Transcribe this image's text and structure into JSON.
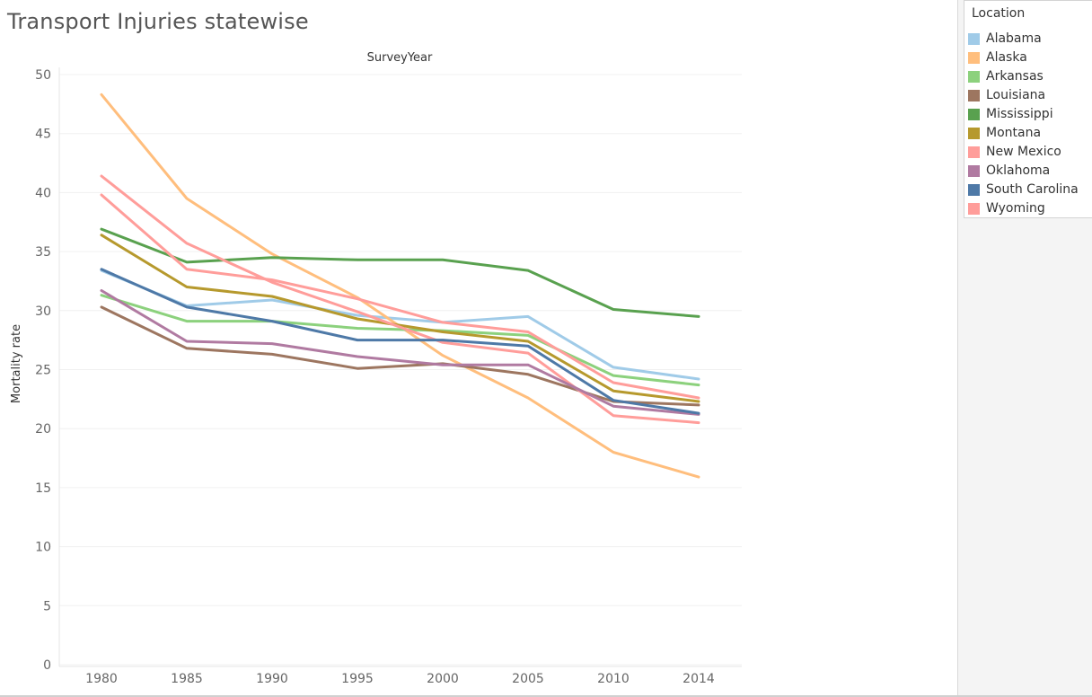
{
  "title": "Transport Injuries statewise",
  "legend": {
    "title": "Location",
    "items": [
      {
        "label": "Alabama",
        "color": "#a0cbe8"
      },
      {
        "label": "Alaska",
        "color": "#ffbe7d"
      },
      {
        "label": "Arkansas",
        "color": "#8cd17d"
      },
      {
        "label": "Louisiana",
        "color": "#9d7660"
      },
      {
        "label": "Mississippi",
        "color": "#59a14f"
      },
      {
        "label": "Montana",
        "color": "#b6992d"
      },
      {
        "label": "New Mexico",
        "color": "#ff9d9a"
      },
      {
        "label": "Oklahoma",
        "color": "#b07aa1"
      },
      {
        "label": "South Carolina",
        "color": "#4e79a7"
      },
      {
        "label": "Wyoming",
        "color": "#ff9d9a"
      }
    ]
  },
  "chart_data": {
    "type": "line",
    "title": "Transport Injuries statewise",
    "xlabel": "SurveyYear",
    "ylabel": "Mortality rate",
    "x": [
      "1980",
      "1985",
      "1990",
      "1995",
      "2000",
      "2005",
      "2010",
      "2014"
    ],
    "ylim": [
      0,
      50
    ],
    "yticks": [
      0,
      5,
      10,
      15,
      20,
      25,
      30,
      35,
      40,
      45,
      50
    ],
    "grid": true,
    "legend_position": "right",
    "series": [
      {
        "name": "Alabama",
        "color": "#a0cbe8",
        "values": [
          33.4,
          30.4,
          30.9,
          29.6,
          29.0,
          29.5,
          25.2,
          24.2
        ]
      },
      {
        "name": "Alaska",
        "color": "#ffbe7d",
        "values": [
          48.3,
          39.5,
          34.8,
          31.1,
          26.2,
          22.6,
          18.0,
          15.9
        ]
      },
      {
        "name": "Arkansas",
        "color": "#8cd17d",
        "values": [
          31.3,
          29.1,
          29.1,
          28.5,
          28.3,
          27.9,
          24.5,
          23.7
        ]
      },
      {
        "name": "Louisiana",
        "color": "#9d7660",
        "values": [
          30.3,
          26.8,
          26.3,
          25.1,
          25.5,
          24.6,
          22.3,
          22.0
        ]
      },
      {
        "name": "Mississippi",
        "color": "#59a14f",
        "values": [
          36.9,
          34.1,
          34.5,
          34.3,
          34.3,
          33.4,
          30.1,
          29.5
        ]
      },
      {
        "name": "Montana",
        "color": "#b6992d",
        "values": [
          36.4,
          32.0,
          31.2,
          29.3,
          28.2,
          27.4,
          23.2,
          22.3
        ]
      },
      {
        "name": "New Mexico",
        "color": "#ff9d9a",
        "values": [
          41.4,
          35.7,
          32.4,
          29.9,
          27.3,
          26.4,
          21.1,
          20.5
        ]
      },
      {
        "name": "Oklahoma",
        "color": "#b07aa1",
        "values": [
          31.7,
          27.4,
          27.2,
          26.1,
          25.4,
          25.4,
          21.9,
          21.2
        ]
      },
      {
        "name": "South Carolina",
        "color": "#4e79a7",
        "values": [
          33.5,
          30.3,
          29.1,
          27.5,
          27.5,
          27.0,
          22.4,
          21.3
        ]
      },
      {
        "name": "Wyoming",
        "color": "#ff9d9a",
        "values": [
          39.8,
          33.5,
          32.6,
          31.0,
          29.0,
          28.2,
          23.9,
          22.6
        ]
      }
    ]
  }
}
